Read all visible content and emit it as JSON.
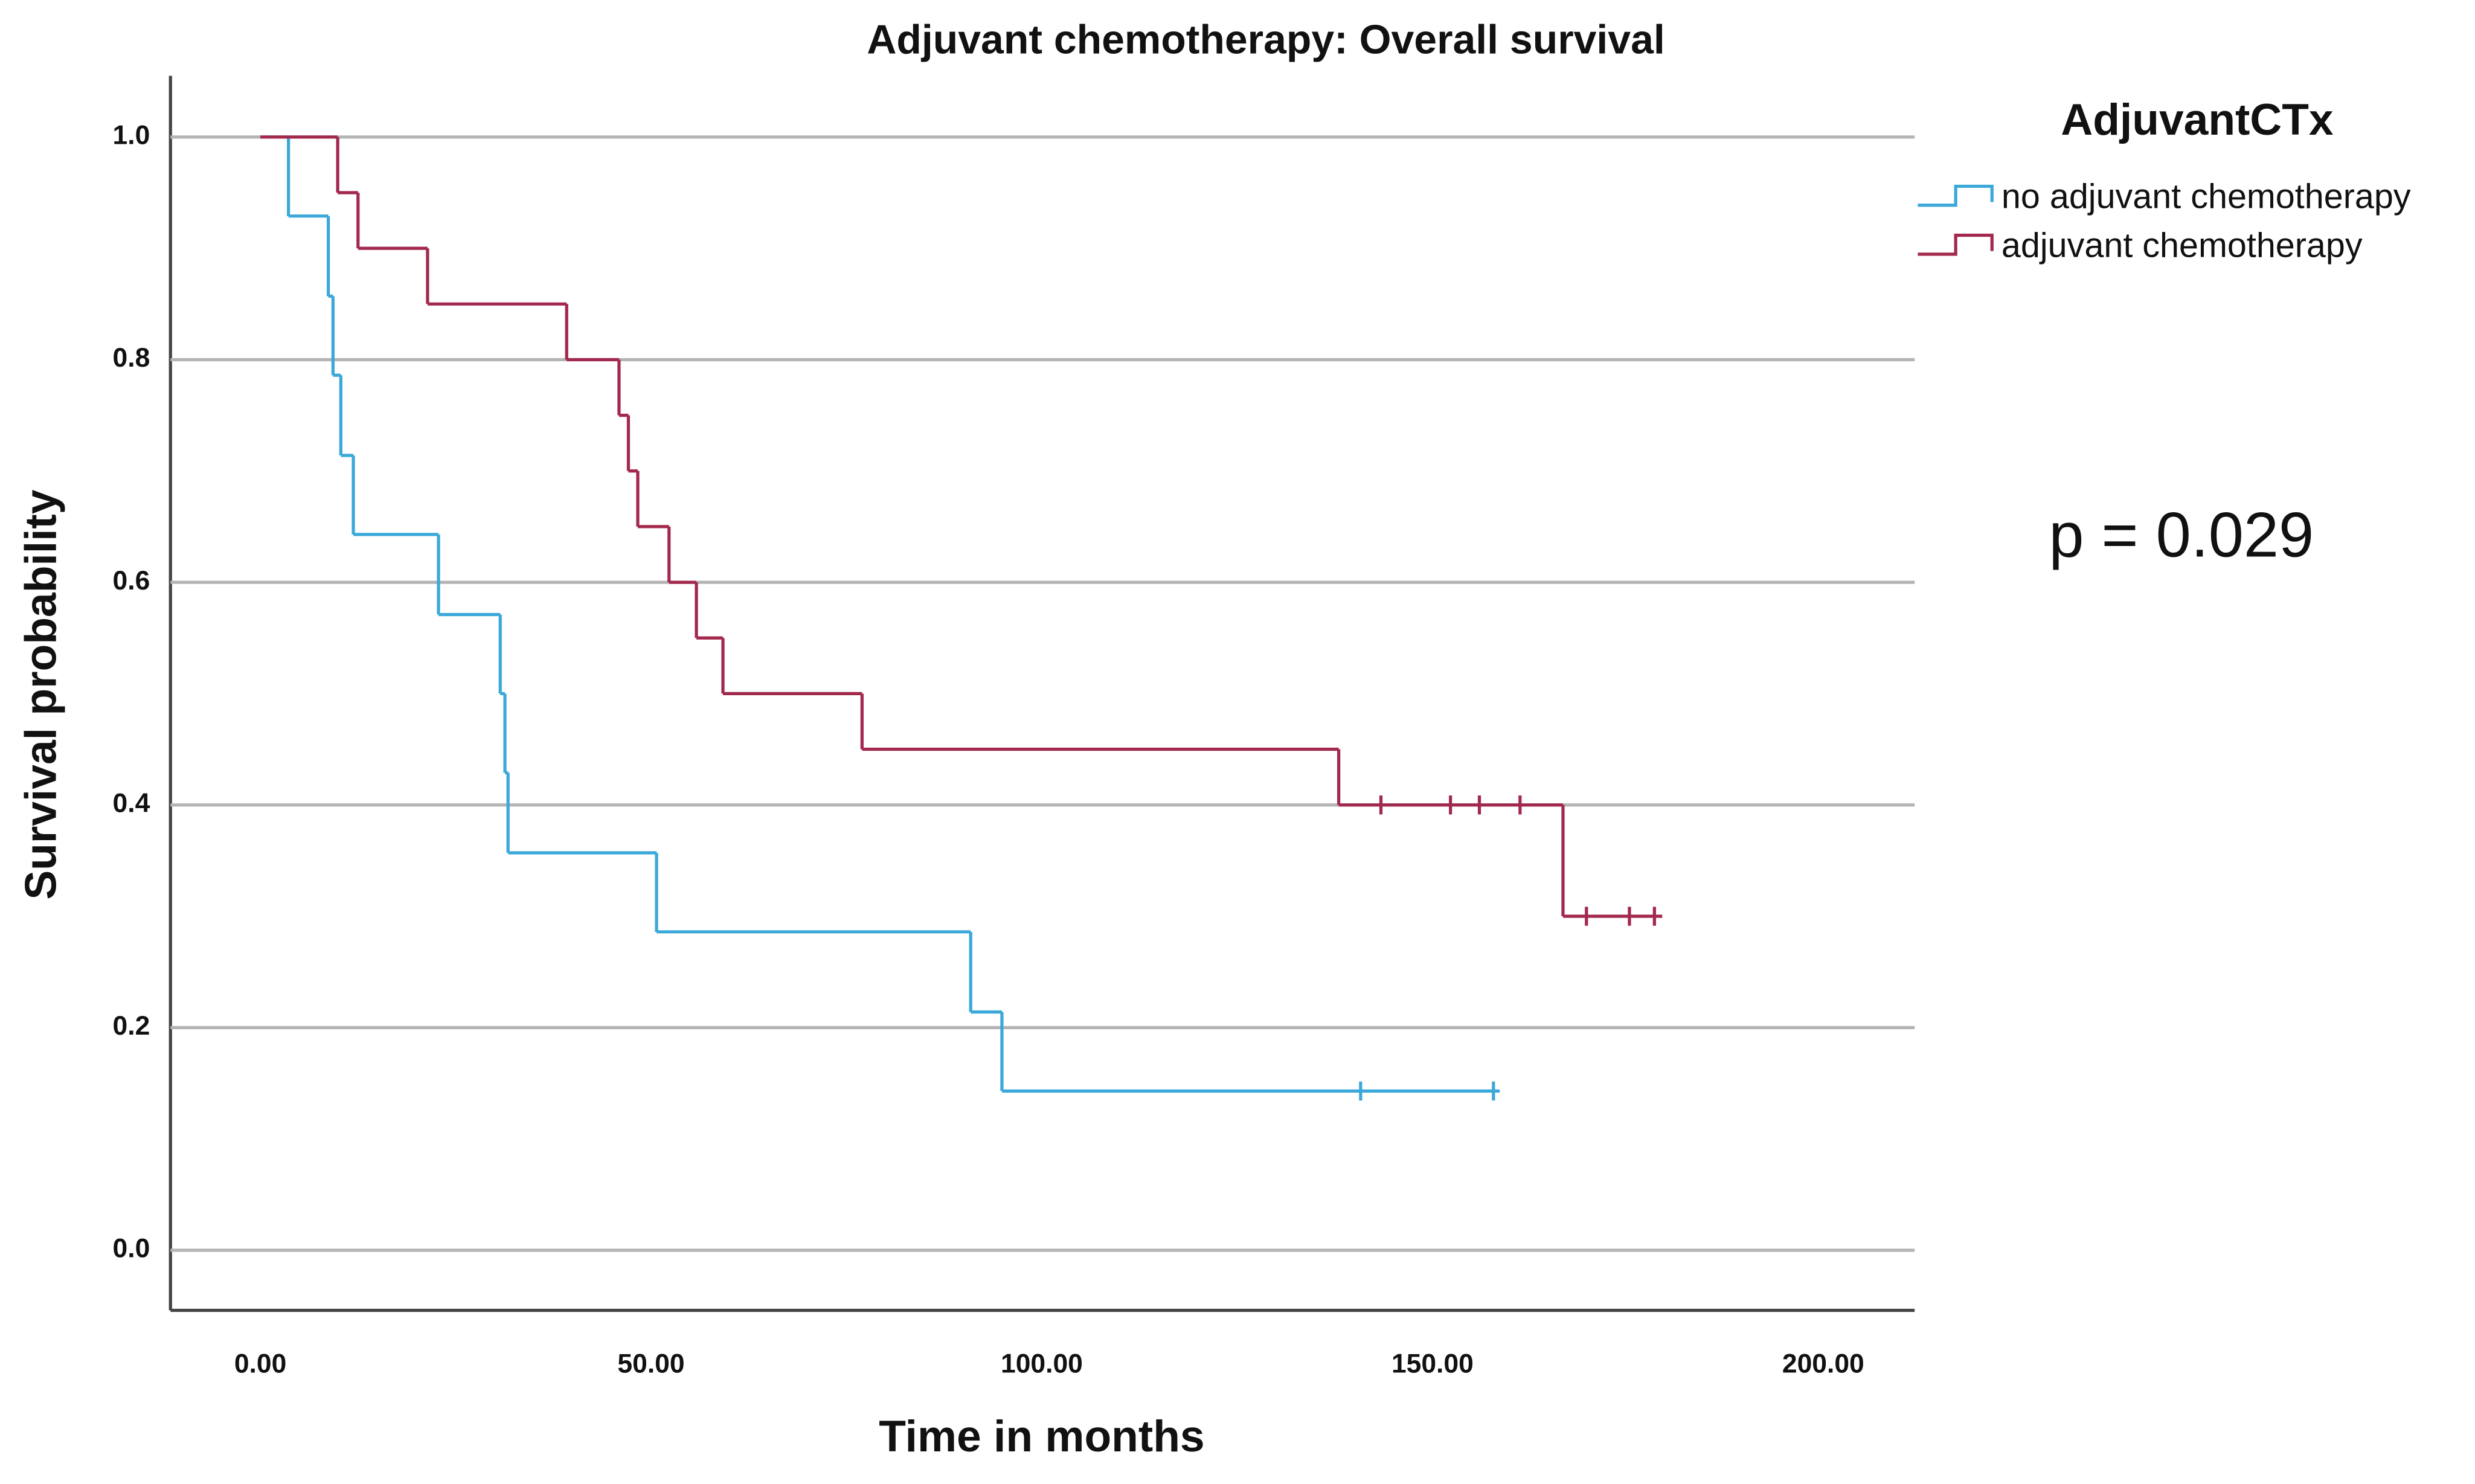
{
  "chart_data": {
    "type": "step",
    "title": "Adjuvant chemotherapy: Overall survival",
    "x_label": "Time in months",
    "y_label": "Survival probability",
    "legend_title": "AdjuvantCTx",
    "annotation": "p = 0.029",
    "xlim": [
      -11.5,
      211.7
    ],
    "ylim": [
      -0.054,
      1.055
    ],
    "xticks": [
      {
        "value": 0,
        "label": "0.00"
      },
      {
        "value": 50,
        "label": "50.00"
      },
      {
        "value": 100,
        "label": "100.00"
      },
      {
        "value": 150,
        "label": "150.00"
      },
      {
        "value": 200,
        "label": "200.00"
      }
    ],
    "yticks": [
      {
        "value": 0,
        "label": "0.0"
      },
      0.2,
      0.4,
      0.6,
      0.8,
      {
        "value": 1,
        "label": "1.0"
      }
    ],
    "grid": true,
    "series": [
      {
        "name": "no adjuvant chemotherapy",
        "color": "#3aa8d8",
        "x": [
          0,
          3.6,
          8.7,
          9.3,
          10.3,
          11.9,
          22.8,
          30.7,
          31.3,
          31.7,
          50.7,
          90.9,
          94.9,
          158.6
        ],
        "values": [
          1.0,
          0.929,
          0.857,
          0.786,
          0.714,
          0.643,
          0.571,
          0.5,
          0.429,
          0.357,
          0.286,
          0.214,
          0.143,
          0.143
        ],
        "censored": {
          "x": [
            140.8,
            157.8
          ],
          "values": [
            0.143,
            0.143
          ]
        }
      },
      {
        "name": "adjuvant chemotherapy",
        "color": "#a2284d",
        "x": [
          0,
          9.9,
          12.5,
          21.4,
          39.2,
          45.9,
          47.1,
          48.3,
          52.3,
          55.8,
          59.2,
          77.0,
          138.0,
          166.7,
          179.4
        ],
        "values": [
          1.0,
          0.95,
          0.9,
          0.85,
          0.8,
          0.75,
          0.7,
          0.65,
          0.6,
          0.55,
          0.5,
          0.45,
          0.4,
          0.3,
          0.3
        ],
        "censored": {
          "x": [
            143.4,
            152.3,
            156.0,
            161.2,
            169.7,
            175.2,
            178.4
          ],
          "values": [
            0.4,
            0.4,
            0.4,
            0.4,
            0.3,
            0.3,
            0.3
          ]
        }
      }
    ]
  }
}
